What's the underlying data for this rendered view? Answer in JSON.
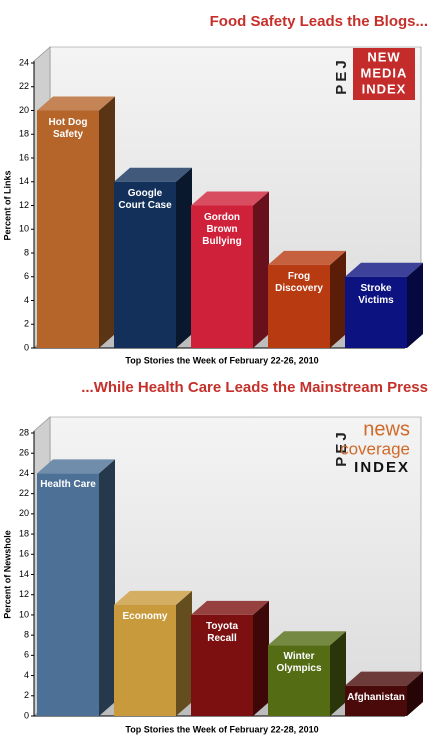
{
  "chart_data": [
    {
      "type": "bar",
      "title": "Food Safety Leads the Blogs...",
      "ylabel": "Percent of Links",
      "xlabel": "Top Stories the Week of February 22-26, 2010",
      "logo": [
        "PEJ",
        "NEW",
        "MEDIA",
        "INDEX"
      ],
      "categories": [
        "Hot Dog Safety",
        "Google Court Case",
        "Gordon Brown Bullying",
        "Frog Discovery",
        "Stroke Victims"
      ],
      "values": [
        20,
        14,
        12,
        7,
        6
      ],
      "colors": [
        "#b5652a",
        "#12305a",
        "#d0213a",
        "#b83a10",
        "#0c1280"
      ],
      "ylim": [
        0,
        24
      ],
      "yticks": [
        0,
        2,
        4,
        6,
        8,
        10,
        12,
        14,
        16,
        18,
        20,
        22,
        24
      ]
    },
    {
      "type": "bar",
      "title": "...While Health Care Leads the Mainstream Press",
      "ylabel": "Percent of Newshole",
      "xlabel": "Top Stories the Week of February 22-28, 2010",
      "logo": [
        "PEJ",
        "news",
        "coverage",
        "INDEX"
      ],
      "categories": [
        "Health Care",
        "Economy",
        "Toyota Recall",
        "Winter Olympics",
        "Afghanistan"
      ],
      "values": [
        24,
        11,
        10,
        7,
        3
      ],
      "colors": [
        "#4c7096",
        "#c89a3c",
        "#7c1010",
        "#546c14",
        "#4a0a0a"
      ],
      "ylim": [
        0,
        28
      ],
      "yticks": [
        0,
        2,
        4,
        6,
        8,
        10,
        12,
        14,
        16,
        18,
        20,
        22,
        24,
        26,
        28
      ]
    }
  ]
}
